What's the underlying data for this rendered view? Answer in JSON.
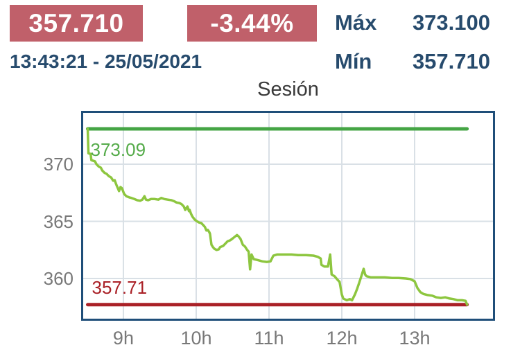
{
  "header": {
    "price": "357.710",
    "change": "-3.44%",
    "timestamp": "13:43:21 - 25/05/2021",
    "max_label": "Máx",
    "max_value": "373.100",
    "min_label": "Mín",
    "min_value": "357.710"
  },
  "colors": {
    "badge_bg": "#c0606a",
    "badge_text": "#ffffff",
    "navy": "#274b6d",
    "title": "#3a3a3a",
    "axis_text": "#787878",
    "plot_border": "#1f4e79",
    "grid": "#d9e0e6",
    "max_line": "#44a544",
    "max_label": "#55ab4a",
    "price_line": "#8dc63f",
    "min_line": "#aa2127",
    "min_label": "#aa2127"
  },
  "chart_data": {
    "type": "line",
    "title": "Sesión",
    "xlabel": "",
    "ylabel": "",
    "grid": true,
    "x_unit": "hour_of_day",
    "x_range": [
      8.448,
      14.076
    ],
    "y_range": [
      356.485,
      374.485
    ],
    "x_ticks": [
      {
        "t": 9,
        "label": "9h"
      },
      {
        "t": 10,
        "label": "10h"
      },
      {
        "t": 11,
        "label": "11h"
      },
      {
        "t": 12,
        "label": "12h"
      },
      {
        "t": 13,
        "label": "13h"
      }
    ],
    "y_ticks": [
      {
        "v": 360,
        "label": "360"
      },
      {
        "v": 365,
        "label": "365"
      },
      {
        "v": 370,
        "label": "370"
      }
    ],
    "max_line": {
      "value": 373.09,
      "label": "373.09"
    },
    "min_line": {
      "value": 357.71,
      "label": "357.71"
    },
    "series": [
      {
        "name": "session-price",
        "points": [
          [
            8.51,
            373.09
          ],
          [
            8.52,
            370.95
          ],
          [
            8.55,
            370.9
          ],
          [
            8.56,
            370.35
          ],
          [
            8.61,
            370.25
          ],
          [
            8.63,
            370.0
          ],
          [
            8.66,
            369.8
          ],
          [
            8.69,
            369.7
          ],
          [
            8.71,
            369.45
          ],
          [
            8.74,
            369.25
          ],
          [
            8.77,
            369.15
          ],
          [
            8.8,
            368.95
          ],
          [
            8.83,
            368.85
          ],
          [
            8.86,
            368.55
          ],
          [
            8.88,
            368.6
          ],
          [
            8.9,
            368.25
          ],
          [
            8.92,
            367.95
          ],
          [
            8.94,
            367.65
          ],
          [
            8.96,
            368.0
          ],
          [
            8.98,
            367.9
          ],
          [
            9.01,
            367.4
          ],
          [
            9.04,
            367.2
          ],
          [
            9.08,
            367.1
          ],
          [
            9.11,
            367.05
          ],
          [
            9.15,
            366.95
          ],
          [
            9.19,
            366.85
          ],
          [
            9.23,
            366.8
          ],
          [
            9.26,
            366.9
          ],
          [
            9.29,
            367.2
          ],
          [
            9.31,
            366.9
          ],
          [
            9.34,
            366.85
          ],
          [
            9.38,
            366.95
          ],
          [
            9.43,
            366.95
          ],
          [
            9.48,
            366.9
          ],
          [
            9.52,
            367.05
          ],
          [
            9.56,
            366.95
          ],
          [
            9.61,
            366.9
          ],
          [
            9.66,
            366.85
          ],
          [
            9.7,
            366.75
          ],
          [
            9.73,
            366.65
          ],
          [
            9.77,
            366.6
          ],
          [
            9.8,
            366.5
          ],
          [
            9.83,
            366.3
          ],
          [
            9.85,
            366.0
          ],
          [
            9.88,
            366.3
          ],
          [
            9.9,
            365.9
          ],
          [
            9.91,
            366.0
          ],
          [
            9.93,
            365.65
          ],
          [
            9.95,
            365.4
          ],
          [
            9.98,
            365.15
          ],
          [
            10.0,
            365.05
          ],
          [
            10.04,
            364.9
          ],
          [
            10.07,
            364.85
          ],
          [
            10.1,
            364.65
          ],
          [
            10.12,
            364.5
          ],
          [
            10.13,
            364.35
          ],
          [
            10.14,
            364.2
          ],
          [
            10.16,
            364.25
          ],
          [
            10.18,
            364.05
          ],
          [
            10.19,
            363.9
          ],
          [
            10.21,
            362.95
          ],
          [
            10.23,
            362.75
          ],
          [
            10.25,
            362.6
          ],
          [
            10.28,
            362.5
          ],
          [
            10.31,
            362.55
          ],
          [
            10.33,
            362.75
          ],
          [
            10.37,
            362.85
          ],
          [
            10.4,
            363.05
          ],
          [
            10.43,
            363.25
          ],
          [
            10.47,
            363.35
          ],
          [
            10.5,
            363.5
          ],
          [
            10.53,
            363.65
          ],
          [
            10.56,
            363.8
          ],
          [
            10.58,
            363.7
          ],
          [
            10.61,
            363.45
          ],
          [
            10.64,
            362.95
          ],
          [
            10.67,
            362.8
          ],
          [
            10.7,
            362.5
          ],
          [
            10.72,
            362.35
          ],
          [
            10.74,
            360.8
          ],
          [
            10.76,
            362.1
          ],
          [
            10.79,
            361.7
          ],
          [
            10.85,
            361.6
          ],
          [
            10.91,
            361.5
          ],
          [
            10.97,
            361.45
          ],
          [
            11.02,
            361.5
          ],
          [
            11.06,
            362.0
          ],
          [
            11.11,
            362.1
          ],
          [
            11.21,
            362.1
          ],
          [
            11.31,
            362.1
          ],
          [
            11.4,
            362.05
          ],
          [
            11.51,
            362.05
          ],
          [
            11.61,
            362.0
          ],
          [
            11.67,
            361.9
          ],
          [
            11.71,
            361.75
          ],
          [
            11.72,
            361.2
          ],
          [
            11.76,
            361.05
          ],
          [
            11.81,
            361.05
          ],
          [
            11.84,
            362.1
          ],
          [
            11.86,
            360.35
          ],
          [
            11.9,
            360.2
          ],
          [
            11.94,
            359.9
          ],
          [
            11.97,
            359.7
          ],
          [
            12.0,
            358.6
          ],
          [
            12.02,
            358.25
          ],
          [
            12.07,
            358.1
          ],
          [
            12.11,
            358.2
          ],
          [
            12.14,
            358.1
          ],
          [
            12.18,
            358.6
          ],
          [
            12.21,
            359.1
          ],
          [
            12.24,
            359.65
          ],
          [
            12.27,
            360.25
          ],
          [
            12.3,
            360.85
          ],
          [
            12.32,
            360.35
          ],
          [
            12.34,
            360.2
          ],
          [
            12.4,
            360.1
          ],
          [
            12.5,
            360.1
          ],
          [
            12.59,
            360.1
          ],
          [
            12.69,
            360.05
          ],
          [
            12.78,
            360.05
          ],
          [
            12.88,
            360.0
          ],
          [
            12.94,
            359.95
          ],
          [
            13.0,
            359.75
          ],
          [
            13.04,
            359.15
          ],
          [
            13.08,
            358.8
          ],
          [
            13.12,
            358.65
          ],
          [
            13.18,
            358.55
          ],
          [
            13.24,
            358.5
          ],
          [
            13.3,
            358.35
          ],
          [
            13.36,
            358.3
          ],
          [
            13.42,
            358.35
          ],
          [
            13.48,
            358.25
          ],
          [
            13.53,
            358.2
          ],
          [
            13.59,
            358.1
          ],
          [
            13.65,
            358.1
          ],
          [
            13.7,
            358.05
          ],
          [
            13.72,
            357.71
          ]
        ]
      }
    ]
  }
}
